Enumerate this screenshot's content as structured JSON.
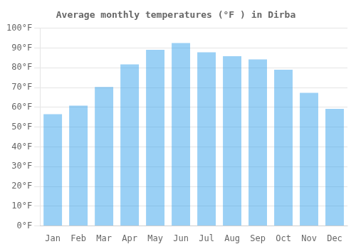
{
  "chart_data": {
    "type": "bar",
    "title": "Average monthly temperatures (°F ) in Dirba",
    "categories": [
      "Jan",
      "Feb",
      "Mar",
      "Apr",
      "May",
      "Jun",
      "Jul",
      "Aug",
      "Sep",
      "Oct",
      "Nov",
      "Dec"
    ],
    "values": [
      56.5,
      60.8,
      70.3,
      81.7,
      89.1,
      92.5,
      87.8,
      85.8,
      84.2,
      79.0,
      67.3,
      59.2
    ],
    "ylim": [
      0,
      100
    ],
    "yticks": [
      {
        "value": 0,
        "label": "0°F"
      },
      {
        "value": 10,
        "label": "10°F"
      },
      {
        "value": 20,
        "label": "20°F"
      },
      {
        "value": 30,
        "label": "30°F"
      },
      {
        "value": 40,
        "label": "40°F"
      },
      {
        "value": 50,
        "label": "50°F"
      },
      {
        "value": 60,
        "label": "60°F"
      },
      {
        "value": 70,
        "label": "70°F"
      },
      {
        "value": 80,
        "label": "80°F"
      },
      {
        "value": 90,
        "label": "90°F"
      },
      {
        "value": 100,
        "label": "100°F"
      }
    ],
    "grid": true
  }
}
